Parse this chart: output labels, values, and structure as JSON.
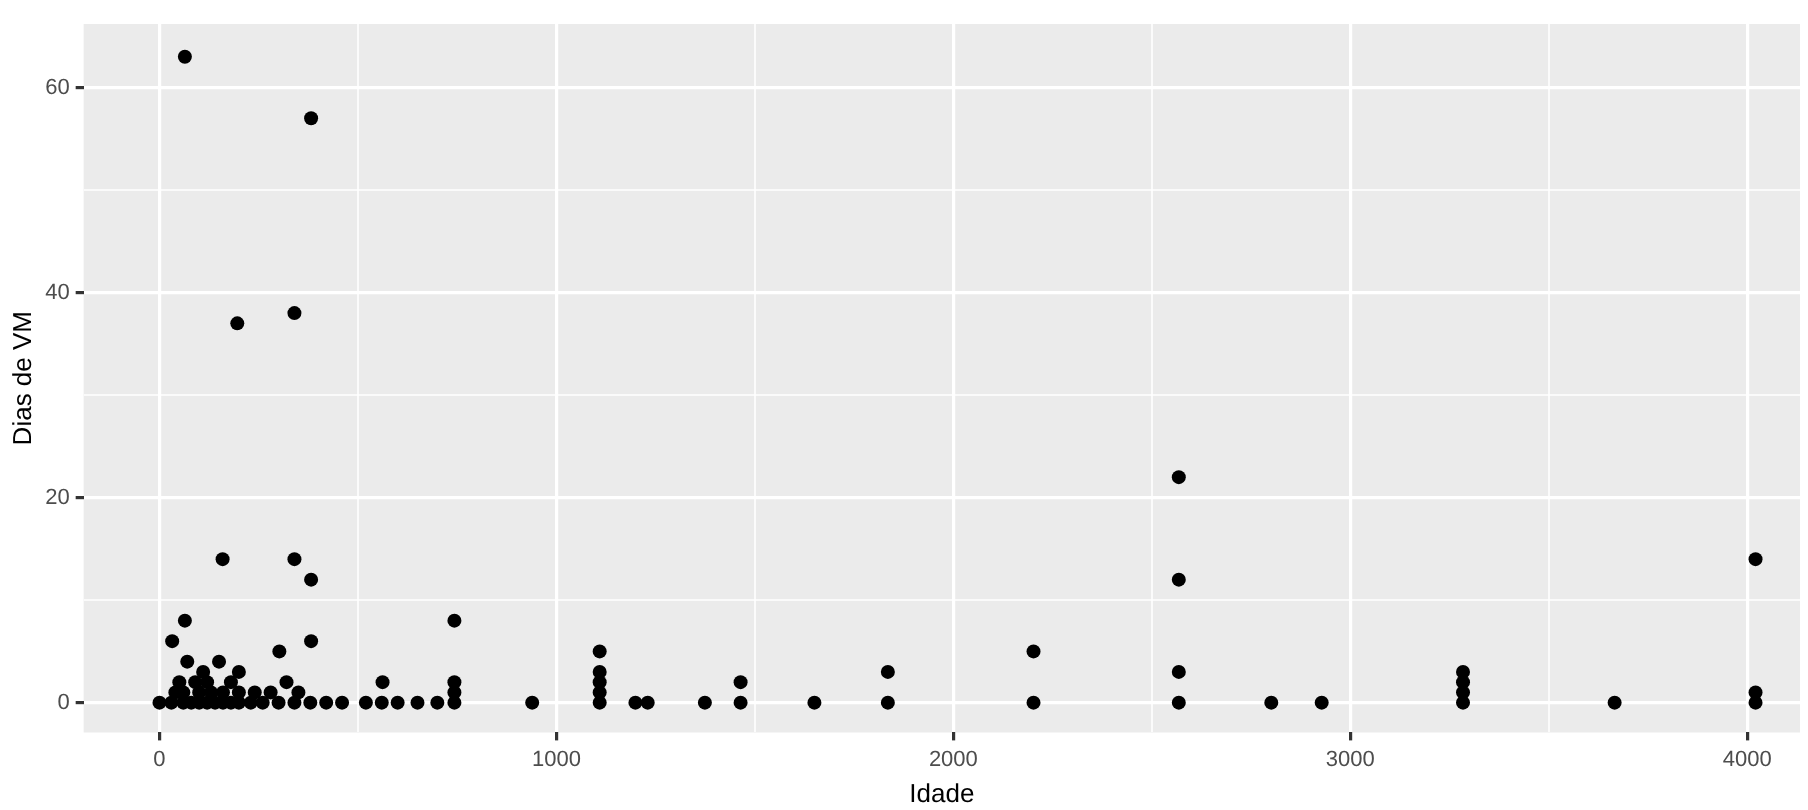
{
  "chart_data": {
    "type": "scatter",
    "xlabel": "Idade",
    "ylabel": "Dias de VM",
    "color": "#000000",
    "marker": "circle",
    "grid": true,
    "x": [
      64,
      382,
      196,
      340,
      159,
      340,
      382,
      64,
      743,
      32,
      382,
      302,
      1109,
      0,
      30,
      60,
      80,
      100,
      120,
      140,
      160,
      180,
      200,
      230,
      260,
      300,
      340,
      380,
      420,
      460,
      520,
      560,
      600,
      650,
      700,
      40,
      60,
      100,
      130,
      160,
      200,
      240,
      280,
      350,
      50,
      90,
      120,
      180,
      320,
      70,
      110,
      150,
      200,
      562,
      743,
      743,
      743,
      939,
      1109,
      1109,
      1109,
      1109,
      1199,
      1230,
      1374,
      1464,
      1464,
      1650,
      1835,
      1835,
      2202,
      2202,
      2568,
      2568,
      2568,
      2568,
      2801,
      2928,
      3284,
      3284,
      3284,
      3284,
      3666,
      4021,
      4021,
      4021
    ],
    "values": [
      63,
      57,
      37,
      38,
      14,
      14,
      12,
      8,
      8,
      6,
      6,
      5,
      5,
      0,
      0,
      0,
      0,
      0,
      0,
      0,
      0,
      0,
      0,
      0,
      0,
      0,
      0,
      0,
      0,
      0,
      0,
      0,
      0,
      0,
      0,
      1,
      1,
      1,
      1,
      1,
      1,
      1,
      1,
      1,
      2,
      2,
      2,
      2,
      2,
      4,
      3,
      4,
      3,
      2,
      2,
      1,
      0,
      0,
      3,
      2,
      1,
      0,
      0,
      0,
      0,
      2,
      0,
      0,
      3,
      0,
      5,
      0,
      22,
      12,
      3,
      0,
      0,
      0,
      0,
      1,
      2,
      3,
      0,
      0,
      1,
      14
    ],
    "xlim": [
      -191,
      4133
    ],
    "ylim": [
      -2.9,
      66.2
    ],
    "xticks": [
      0,
      {
        "value": 500,
        "label": null
      },
      1000,
      {
        "value": 1500,
        "label": null
      },
      2000,
      {
        "value": 2500,
        "label": null
      },
      3000,
      {
        "value": 3500,
        "label": null
      },
      4000
    ],
    "yticks": [
      0,
      {
        "value": 10,
        "label": null
      },
      20,
      {
        "value": 30,
        "label": null
      },
      40,
      {
        "value": 50,
        "label": null
      },
      60
    ]
  }
}
